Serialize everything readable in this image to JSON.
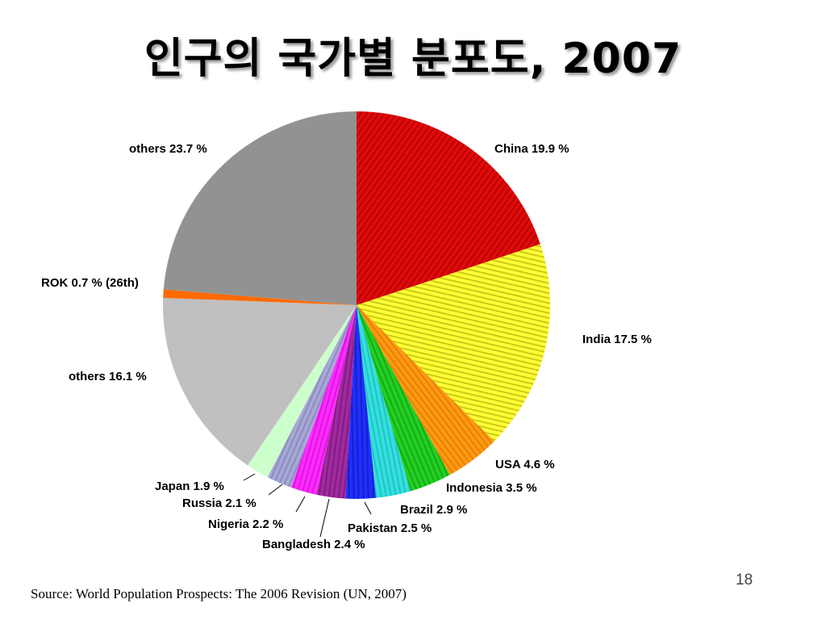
{
  "slide": {
    "title": "인구의 국가별 분포도, 2007",
    "source": "Source: World Population Prospects: The 2006 Revision (UN, 2007)",
    "page_number": "18"
  },
  "chart_data": {
    "type": "pie",
    "title": "인구의 국가별 분포도, 2007",
    "start": "12 o'clock",
    "direction": "clockwise",
    "unit": "%",
    "slices": [
      {
        "label": "China  19.9 %",
        "name": "China",
        "value": 19.9,
        "color": "#e30a0a",
        "dark": "#7a0000"
      },
      {
        "label": "India 17.5 %",
        "name": "India",
        "value": 17.5,
        "color": "#ffff33",
        "dark": "#8c8a00"
      },
      {
        "label": "USA  4.6 %",
        "name": "USA",
        "value": 4.6,
        "color": "#ff9a10",
        "dark": "#c86000"
      },
      {
        "label": "Indonesia 3.5 %",
        "name": "Indonesia",
        "value": 3.5,
        "color": "#22d022",
        "dark": "#0a7a0a"
      },
      {
        "label": "Brazil 2.9 %",
        "name": "Brazil",
        "value": 2.9,
        "color": "#33e0e0",
        "dark": "#119c9c"
      },
      {
        "label": "Pakistan 2.5 %",
        "name": "Pakistan",
        "value": 2.5,
        "color": "#1f2fff",
        "dark": "#0a0a8a"
      },
      {
        "label": "Bangladesh  2.4 %",
        "name": "Bangladesh",
        "value": 2.4,
        "color": "#a02aa0",
        "dark": "#5a0a5a"
      },
      {
        "label": "Nigeria 2.2 %",
        "name": "Nigeria",
        "value": 2.2,
        "color": "#ff2aff",
        "dark": "#b000b0"
      },
      {
        "label": "Russia 2.1 %",
        "name": "Russia",
        "value": 2.1,
        "color": "#a8a8d8",
        "dark": "#6a6a9a"
      },
      {
        "label": "Japan 1.9 %",
        "name": "Japan",
        "value": 1.9,
        "color": "#ccffcc",
        "dark": "#ccffcc"
      },
      {
        "label": "others 16.1 %",
        "name": "others",
        "value": 16.1,
        "color": "#c0c0c0",
        "dark": "#c0c0c0"
      },
      {
        "label": "ROK 0.7 % (26th)",
        "name": "ROK",
        "value": 0.7,
        "color": "#ff6a00",
        "dark": "#ff6a00"
      },
      {
        "label": "others 23.7 %",
        "name": "others",
        "value": 23.7,
        "color": "#929292",
        "dark": "#929292"
      }
    ]
  }
}
